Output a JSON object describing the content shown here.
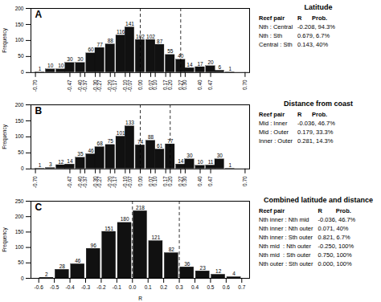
{
  "chart_data": [
    {
      "type": "bar",
      "title": "A",
      "x": [
        -0.67,
        -0.6,
        -0.53,
        -0.47,
        -0.4,
        -0.33,
        -0.27,
        -0.2,
        -0.13,
        -0.07,
        0.0,
        0.07,
        0.13,
        0.2,
        0.27,
        0.33,
        0.4,
        0.47,
        0.53,
        0.6
      ],
      "values": [
        1,
        10,
        10,
        30,
        30,
        60,
        77,
        88,
        116,
        141,
        102,
        102,
        87,
        55,
        40,
        14,
        17,
        20,
        6,
        1
      ],
      "color": "#111111",
      "xlim": [
        -0.73,
        0.73
      ],
      "xticks": [
        {
          "value": -0.7,
          "label": "-0.70"
        },
        -0.47,
        {
          "value": -0.4,
          "label": "-0.40"
        },
        -0.37,
        {
          "value": -0.3,
          "label": "-0.30"
        },
        -0.27,
        {
          "value": -0.2,
          "label": "-0.20"
        },
        -0.17,
        {
          "value": -0.1,
          "label": "-0.10"
        },
        -0.07,
        {
          "value": 0,
          "label": "0.00"
        },
        0.07,
        {
          "value": 0.1,
          "label": "0.10"
        },
        0.17,
        {
          "value": 0.2,
          "label": "0.20"
        },
        0.27,
        {
          "value": 0.3,
          "label": "0.30"
        },
        {
          "value": 0.4,
          "label": "0.40"
        },
        0.47,
        {
          "value": 0.7,
          "label": "0.70"
        }
      ],
      "ylim": [
        0,
        200
      ],
      "yticks": [
        0,
        50,
        100,
        150,
        200
      ],
      "ylabel": "Frequency",
      "data_labels": true,
      "vlines": [
        0.0,
        0.27
      ],
      "table": {
        "title": "Latitude",
        "columns": [
          "Reef pair",
          "R      Prob."
        ],
        "rows": [
          [
            "Nth : Central",
            "-0.208, 94.3%"
          ],
          [
            "Nth : Sth",
            "0.679, 6.7%"
          ],
          [
            "Central : Sth",
            "0.143, 40%"
          ]
        ]
      }
    },
    {
      "type": "bar",
      "title": "B",
      "x": [
        -0.67,
        -0.6,
        -0.53,
        -0.47,
        -0.4,
        -0.33,
        -0.27,
        -0.2,
        -0.13,
        -0.07,
        0.0,
        0.07,
        0.13,
        0.2,
        0.27,
        0.33,
        0.4,
        0.47,
        0.53,
        0.6
      ],
      "values": [
        1,
        3,
        12,
        14,
        35,
        46,
        68,
        75,
        101,
        133,
        74,
        88,
        61,
        77,
        14,
        30,
        10,
        11,
        30,
        1
      ],
      "color": "#111111",
      "xlim": [
        -0.73,
        0.73
      ],
      "xticks": [
        {
          "value": -0.7,
          "label": "-0.70"
        },
        -0.47,
        {
          "value": -0.4,
          "label": "-0.40"
        },
        -0.37,
        {
          "value": -0.3,
          "label": "-0.30"
        },
        -0.27,
        {
          "value": -0.2,
          "label": "-0.20"
        },
        -0.17,
        {
          "value": -0.1,
          "label": "-0.10"
        },
        -0.07,
        {
          "value": 0,
          "label": "0.00"
        },
        0.07,
        {
          "value": 0.1,
          "label": "0.10"
        },
        0.17,
        {
          "value": 0.2,
          "label": "0.20"
        },
        0.27,
        {
          "value": 0.3,
          "label": "0.30"
        },
        {
          "value": 0.4,
          "label": "0.40"
        },
        0.47,
        {
          "value": 0.7,
          "label": "0.70"
        }
      ],
      "ylim": [
        0,
        200
      ],
      "yticks": [
        0,
        50,
        100,
        150,
        200
      ],
      "ylabel": "Frequency",
      "data_labels": true,
      "vlines": [
        0.0,
        0.2
      ],
      "table": {
        "title": "Distance from coast",
        "columns": [
          "Reef pair",
          "R      Prob."
        ],
        "rows": [
          [
            "Mid : Inner",
            "-0.036, 46.7%"
          ],
          [
            "Mid : Outer",
            "0.179, 33.3%"
          ],
          [
            "Inner : Outer",
            "0.281, 14.3%"
          ]
        ]
      }
    },
    {
      "type": "bar",
      "title": "C",
      "x": [
        -0.55,
        -0.45,
        -0.35,
        -0.25,
        -0.15,
        -0.05,
        0.05,
        0.15,
        0.25,
        0.35,
        0.45,
        0.55,
        0.65
      ],
      "values": [
        2,
        28,
        46,
        96,
        151,
        180,
        218,
        121,
        82,
        36,
        23,
        12,
        4
      ],
      "color": "#111111",
      "xlim": [
        -0.65,
        0.75
      ],
      "xticks": [
        -0.6,
        -0.5,
        -0.4,
        -0.3,
        -0.2,
        -0.1,
        {
          "value": 0,
          "label": "0.0"
        },
        0.1,
        0.2,
        0.3,
        0.4,
        0.5,
        0.6,
        0.7
      ],
      "ylim": [
        0,
        250
      ],
      "yticks": [
        0,
        50,
        100,
        150,
        200,
        250
      ],
      "xlabel": "R",
      "ylabel": "Frequency",
      "data_labels": true,
      "vlines": [
        0.0,
        0.3
      ],
      "table": {
        "title": "Combined latitude and distance",
        "columns": [
          "Reef pair",
          "R        Prob."
        ],
        "rows": [
          [
            "Nth inner : Nth mid",
            "-0.036, 46.7%"
          ],
          [
            "Nth inner : Nth outer",
            "0.071, 40%"
          ],
          [
            "Nth inner : Sth outer",
            "0.821, 6.7%"
          ],
          [
            "Nth mid  : Nth outer",
            "-0.250, 100%"
          ],
          [
            "Nth mid  : Sth outer",
            "0.750, 100%"
          ],
          [
            "Nth outer : Sth outer",
            "0.000, 100%"
          ]
        ]
      }
    }
  ]
}
